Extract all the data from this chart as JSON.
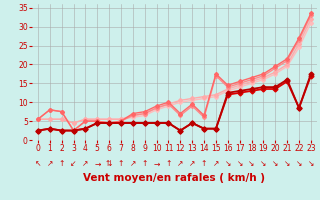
{
  "xlabel": "Vent moyen/en rafales ( km/h )",
  "xlim": [
    -0.5,
    23.5
  ],
  "ylim": [
    0,
    36
  ],
  "yticks": [
    0,
    5,
    10,
    15,
    20,
    25,
    30,
    35
  ],
  "xticks": [
    0,
    1,
    2,
    3,
    4,
    5,
    6,
    7,
    8,
    9,
    10,
    11,
    12,
    13,
    14,
    15,
    16,
    17,
    18,
    19,
    20,
    21,
    22,
    23
  ],
  "bg_color": "#cef0ec",
  "grid_color": "#aaaaaa",
  "series": [
    {
      "x": [
        0,
        1,
        2,
        3,
        4,
        5,
        6,
        7,
        8,
        9,
        10,
        11,
        12,
        13,
        14,
        15,
        16,
        17,
        18,
        19,
        20,
        21,
        22,
        23
      ],
      "y": [
        5.5,
        5.5,
        5.5,
        4.5,
        5.5,
        5.5,
        5.5,
        5.5,
        6.0,
        6.5,
        8.0,
        9.0,
        10.0,
        10.5,
        11.0,
        11.5,
        13.0,
        14.0,
        15.0,
        16.0,
        17.5,
        19.5,
        24.5,
        31.0
      ],
      "color": "#ffbbbb",
      "lw": 1.0,
      "ms": 2.0
    },
    {
      "x": [
        0,
        1,
        2,
        3,
        4,
        5,
        6,
        7,
        8,
        9,
        10,
        11,
        12,
        13,
        14,
        15,
        16,
        17,
        18,
        19,
        20,
        21,
        22,
        23
      ],
      "y": [
        5.5,
        5.5,
        5.5,
        4.5,
        5.5,
        5.5,
        5.5,
        5.5,
        6.5,
        7.0,
        8.5,
        9.5,
        10.5,
        11.0,
        11.5,
        12.0,
        13.5,
        14.5,
        15.5,
        16.5,
        18.0,
        20.0,
        25.5,
        32.0
      ],
      "color": "#ffaaaa",
      "lw": 1.0,
      "ms": 2.0
    },
    {
      "x": [
        0,
        1,
        2,
        3,
        4,
        5,
        6,
        7,
        8,
        9,
        10,
        11,
        12,
        13,
        14,
        15,
        16,
        17,
        18,
        19,
        20,
        21,
        22,
        23
      ],
      "y": [
        5.5,
        8.0,
        7.5,
        2.5,
        5.0,
        5.0,
        4.5,
        5.0,
        6.5,
        7.0,
        8.5,
        9.5,
        6.5,
        9.0,
        6.0,
        17.0,
        14.0,
        15.0,
        16.0,
        17.0,
        19.0,
        21.0,
        26.5,
        33.0
      ],
      "color": "#ff8888",
      "lw": 1.0,
      "ms": 2.0
    },
    {
      "x": [
        0,
        1,
        2,
        3,
        4,
        5,
        6,
        7,
        8,
        9,
        10,
        11,
        12,
        13,
        14,
        15,
        16,
        17,
        18,
        19,
        20,
        21,
        22,
        23
      ],
      "y": [
        5.5,
        8.0,
        7.5,
        2.5,
        5.0,
        5.0,
        4.5,
        5.0,
        7.0,
        7.5,
        9.0,
        10.0,
        7.0,
        9.5,
        6.5,
        17.5,
        14.5,
        15.5,
        16.5,
        17.5,
        19.5,
        21.5,
        27.0,
        33.5
      ],
      "color": "#ff6666",
      "lw": 1.0,
      "ms": 2.0
    },
    {
      "x": [
        0,
        1,
        2,
        3,
        4,
        5,
        6,
        7,
        8,
        9,
        10,
        11,
        12,
        13,
        14,
        15,
        16,
        17,
        18,
        19,
        20,
        21,
        22,
        23
      ],
      "y": [
        2.5,
        3.0,
        2.5,
        2.5,
        3.0,
        4.5,
        4.5,
        4.5,
        4.5,
        4.5,
        4.5,
        4.5,
        2.5,
        4.5,
        3.0,
        3.0,
        12.0,
        12.5,
        13.0,
        13.5,
        13.5,
        15.5,
        8.5,
        17.0
      ],
      "color": "#dd0000",
      "lw": 1.3,
      "ms": 2.5
    },
    {
      "x": [
        0,
        1,
        2,
        3,
        4,
        5,
        6,
        7,
        8,
        9,
        10,
        11,
        12,
        13,
        14,
        15,
        16,
        17,
        18,
        19,
        20,
        21,
        22,
        23
      ],
      "y": [
        2.5,
        3.0,
        2.5,
        2.5,
        3.0,
        4.5,
        4.5,
        4.5,
        4.5,
        4.5,
        4.5,
        4.5,
        2.5,
        4.5,
        3.0,
        3.0,
        12.5,
        13.0,
        13.5,
        14.0,
        14.0,
        16.0,
        8.5,
        17.5
      ],
      "color": "#bb0000",
      "lw": 1.3,
      "ms": 2.5
    }
  ],
  "arrows": [
    "↖",
    "↗",
    "↑",
    "↙",
    "↗",
    "→",
    "⇅",
    "↑",
    "↗",
    "↑",
    "→",
    "↑",
    "↗",
    "↗",
    "↑",
    "↗",
    "↘",
    "↘",
    "↘",
    "↘",
    "↘",
    "↘",
    "↘",
    "↘"
  ],
  "tick_color": "#cc0000",
  "tick_fontsize": 5.5,
  "arrow_fontsize": 5.5,
  "xlabel_fontsize": 7.5
}
